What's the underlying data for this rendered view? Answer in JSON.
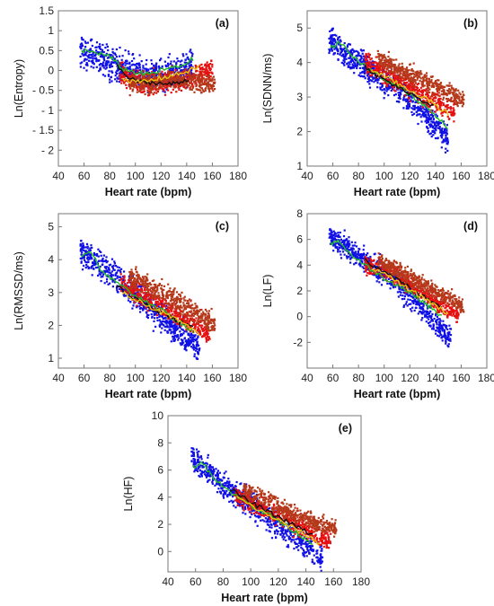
{
  "chart_data": [
    {
      "type": "scatter",
      "panel_label": "(a)",
      "xlabel": "Heart rate (bpm)",
      "ylabel": "Ln(Entropy)",
      "xlim": [
        40,
        180
      ],
      "ylim": [
        -2.4,
        1.5
      ],
      "xticks": [
        "40",
        "60",
        "80",
        "100",
        "120",
        "140",
        "160",
        "180"
      ],
      "yticks": [
        "- 2",
        "- 1.5",
        "- 1",
        "- 0.5",
        "0",
        "0.5",
        "1",
        "1.5"
      ],
      "series": [
        {
          "color": "#1010e6",
          "x_range": [
            57,
            145
          ],
          "trend": [
            [
              58,
              0.5
            ],
            [
              80,
              0.15
            ],
            [
              110,
              -0.15
            ],
            [
              145,
              0.1
            ]
          ],
          "spread": 0.5
        },
        {
          "color": "#e61010",
          "x_range": [
            88,
            160
          ],
          "trend": [
            [
              88,
              -0.1
            ],
            [
              110,
              -0.35
            ],
            [
              135,
              -0.25
            ],
            [
              160,
              0.05
            ]
          ],
          "spread": 0.35
        },
        {
          "color": "#b5391a",
          "x_range": [
            95,
            162
          ],
          "trend": [
            [
              95,
              -0.35
            ],
            [
              130,
              -0.2
            ],
            [
              162,
              -0.35
            ]
          ],
          "spread": 0.3
        }
      ],
      "trend_lines": [
        {
          "color": "#22bb22",
          "points": [
            [
              58,
              0.5
            ],
            [
              70,
              0.45
            ],
            [
              80,
              0.35
            ],
            [
              90,
              0.05
            ],
            [
              100,
              -0.05
            ],
            [
              110,
              -0.1
            ],
            [
              125,
              0.05
            ],
            [
              135,
              0.1
            ],
            [
              145,
              0.3
            ]
          ]
        },
        {
          "color": "#111111",
          "points": [
            [
              86,
              0.1
            ],
            [
              95,
              -0.2
            ],
            [
              105,
              -0.3
            ],
            [
              115,
              -0.3
            ],
            [
              125,
              -0.35
            ],
            [
              135,
              -0.3
            ],
            [
              142,
              -0.2
            ]
          ]
        },
        {
          "color": "#e8c210",
          "points": [
            [
              90,
              -0.2
            ],
            [
              100,
              -0.3
            ],
            [
              112,
              -0.25
            ],
            [
              125,
              -0.15
            ],
            [
              138,
              -0.05
            ],
            [
              150,
              0.1
            ]
          ]
        }
      ]
    },
    {
      "type": "scatter",
      "panel_label": "(b)",
      "xlabel": "Heart rate (bpm)",
      "ylabel": "Ln(SDNN/ms)",
      "xlim": [
        40,
        180
      ],
      "ylim": [
        1,
        5.5
      ],
      "xticks": [
        "40",
        "60",
        "80",
        "100",
        "120",
        "140",
        "160",
        "180"
      ],
      "yticks": [
        "1",
        "2",
        "3",
        "4",
        "5"
      ],
      "series": [
        {
          "color": "#1010e6",
          "x_range": [
            57,
            150
          ],
          "trend": [
            [
              58,
              4.6
            ],
            [
              80,
              4.0
            ],
            [
              110,
              3.3
            ],
            [
              150,
              1.8
            ]
          ],
          "spread": 0.55
        },
        {
          "color": "#e61010",
          "x_range": [
            85,
            155
          ],
          "trend": [
            [
              85,
              4.0
            ],
            [
              115,
              3.4
            ],
            [
              150,
              2.6
            ]
          ],
          "spread": 0.4
        },
        {
          "color": "#b5391a",
          "x_range": [
            95,
            162
          ],
          "trend": [
            [
              95,
              4.1
            ],
            [
              130,
              3.5
            ],
            [
              162,
              2.9
            ]
          ],
          "spread": 0.35
        }
      ],
      "trend_lines": [
        {
          "color": "#22bb22",
          "points": [
            [
              58,
              4.4
            ],
            [
              65,
              4.6
            ],
            [
              75,
              4.2
            ],
            [
              85,
              3.9
            ],
            [
              100,
              3.5
            ],
            [
              115,
              3.2
            ],
            [
              130,
              2.8
            ],
            [
              145,
              2.3
            ],
            [
              150,
              2.0
            ]
          ]
        },
        {
          "color": "#111111",
          "points": [
            [
              85,
              3.9
            ],
            [
              95,
              3.6
            ],
            [
              110,
              3.3
            ],
            [
              125,
              3.0
            ],
            [
              140,
              2.7
            ]
          ]
        },
        {
          "color": "#e8c210",
          "points": [
            [
              90,
              3.8
            ],
            [
              105,
              3.5
            ],
            [
              120,
              3.2
            ],
            [
              135,
              2.9
            ],
            [
              150,
              2.5
            ]
          ]
        }
      ]
    },
    {
      "type": "scatter",
      "panel_label": "(c)",
      "xlabel": "Heart rate (bpm)",
      "ylabel": "Ln(RMSSD/ms)",
      "xlim": [
        40,
        180
      ],
      "ylim": [
        0.7,
        5.4
      ],
      "xticks": [
        "40",
        "60",
        "80",
        "100",
        "120",
        "140",
        "160",
        "180"
      ],
      "yticks": [
        "1",
        "2",
        "3",
        "4",
        "5"
      ],
      "series": [
        {
          "color": "#1010e6",
          "x_range": [
            57,
            150
          ],
          "trend": [
            [
              58,
              4.3
            ],
            [
              80,
              3.6
            ],
            [
              110,
              2.6
            ],
            [
              150,
              1.3
            ]
          ],
          "spread": 0.55
        },
        {
          "color": "#e61010",
          "x_range": [
            88,
            158
          ],
          "trend": [
            [
              88,
              3.3
            ],
            [
              115,
              2.7
            ],
            [
              155,
              1.8
            ]
          ],
          "spread": 0.4
        },
        {
          "color": "#b5391a",
          "x_range": [
            95,
            162
          ],
          "trend": [
            [
              95,
              3.5
            ],
            [
              130,
              2.8
            ],
            [
              162,
              2.0
            ]
          ],
          "spread": 0.4
        }
      ],
      "trend_lines": [
        {
          "color": "#22bb22",
          "points": [
            [
              58,
              4.1
            ],
            [
              65,
              4.3
            ],
            [
              72,
              3.7
            ],
            [
              85,
              3.3
            ],
            [
              100,
              2.9
            ],
            [
              115,
              2.6
            ],
            [
              130,
              2.2
            ],
            [
              145,
              1.8
            ]
          ]
        },
        {
          "color": "#111111",
          "points": [
            [
              85,
              3.2
            ],
            [
              100,
              2.8
            ],
            [
              115,
              2.5
            ],
            [
              130,
              2.2
            ],
            [
              145,
              1.9
            ]
          ]
        },
        {
          "color": "#e8c210",
          "points": [
            [
              90,
              3.0
            ],
            [
              105,
              2.7
            ],
            [
              120,
              2.4
            ],
            [
              135,
              2.1
            ],
            [
              150,
              1.7
            ]
          ]
        }
      ]
    },
    {
      "type": "scatter",
      "panel_label": "(d)",
      "xlabel": "Heart rate (bpm)",
      "ylabel": "Ln(LF)",
      "xlim": [
        40,
        180
      ],
      "ylim": [
        -4,
        8
      ],
      "xticks": [
        "40",
        "60",
        "80",
        "100",
        "120",
        "140",
        "160",
        "180"
      ],
      "yticks": [
        "-2",
        "0",
        "2",
        "4",
        "6",
        "8"
      ],
      "series": [
        {
          "color": "#1010e6",
          "x_range": [
            57,
            152
          ],
          "trend": [
            [
              58,
              6.2
            ],
            [
              80,
              4.8
            ],
            [
              110,
              2.7
            ],
            [
              150,
              -1.5
            ]
          ],
          "spread": 1.2
        },
        {
          "color": "#e61010",
          "x_range": [
            85,
            158
          ],
          "trend": [
            [
              85,
              4.2
            ],
            [
              115,
              2.8
            ],
            [
              155,
              0.2
            ]
          ],
          "spread": 0.9
        },
        {
          "color": "#b5391a",
          "x_range": [
            95,
            162
          ],
          "trend": [
            [
              95,
              4.4
            ],
            [
              130,
              2.5
            ],
            [
              162,
              0.8
            ]
          ],
          "spread": 0.8
        }
      ],
      "trend_lines": [
        {
          "color": "#22bb22",
          "points": [
            [
              58,
              5.6
            ],
            [
              64,
              6.0
            ],
            [
              72,
              5.0
            ],
            [
              85,
              4.0
            ],
            [
              100,
              3.0
            ],
            [
              115,
              2.2
            ],
            [
              130,
              1.2
            ],
            [
              145,
              0.0
            ]
          ]
        },
        {
          "color": "#111111",
          "points": [
            [
              85,
              4.4
            ],
            [
              100,
              3.4
            ],
            [
              115,
              2.6
            ],
            [
              130,
              1.6
            ],
            [
              145,
              0.6
            ]
          ]
        },
        {
          "color": "#e8c210",
          "points": [
            [
              90,
              3.8
            ],
            [
              105,
              3.0
            ],
            [
              120,
              2.1
            ],
            [
              135,
              1.2
            ],
            [
              150,
              0.2
            ]
          ]
        }
      ]
    },
    {
      "type": "scatter",
      "panel_label": "(e)",
      "xlabel": "Heart rate (bpm)",
      "ylabel": "Ln(HF)",
      "xlim": [
        40,
        180
      ],
      "ylim": [
        -1.5,
        10
      ],
      "xticks": [
        "40",
        "60",
        "80",
        "100",
        "120",
        "140",
        "160",
        "180"
      ],
      "yticks": [
        "0",
        "2",
        "4",
        "6",
        "8",
        "10"
      ],
      "series": [
        {
          "color": "#1010e6",
          "x_range": [
            57,
            152
          ],
          "trend": [
            [
              58,
              6.8
            ],
            [
              80,
              5.0
            ],
            [
              110,
              2.7
            ],
            [
              150,
              -0.5
            ]
          ],
          "spread": 1.2
        },
        {
          "color": "#e61010",
          "x_range": [
            88,
            158
          ],
          "trend": [
            [
              88,
              4.2
            ],
            [
              115,
              2.9
            ],
            [
              155,
              0.9
            ]
          ],
          "spread": 0.9
        },
        {
          "color": "#b5391a",
          "x_range": [
            95,
            162
          ],
          "trend": [
            [
              95,
              4.6
            ],
            [
              130,
              2.8
            ],
            [
              162,
              1.6
            ]
          ],
          "spread": 0.8
        }
      ],
      "trend_lines": [
        {
          "color": "#22bb22",
          "points": [
            [
              58,
              6.2
            ],
            [
              64,
              6.6
            ],
            [
              72,
              5.6
            ],
            [
              85,
              4.4
            ],
            [
              100,
              3.4
            ],
            [
              115,
              2.6
            ],
            [
              130,
              1.6
            ],
            [
              145,
              0.6
            ]
          ]
        },
        {
          "color": "#111111",
          "points": [
            [
              85,
              4.6
            ],
            [
              100,
              3.6
            ],
            [
              115,
              2.8
            ],
            [
              130,
              2.0
            ],
            [
              145,
              1.2
            ]
          ]
        },
        {
          "color": "#e8c210",
          "points": [
            [
              90,
              4.0
            ],
            [
              105,
              3.1
            ],
            [
              120,
              2.3
            ],
            [
              135,
              1.5
            ],
            [
              150,
              0.6
            ]
          ]
        }
      ]
    }
  ]
}
